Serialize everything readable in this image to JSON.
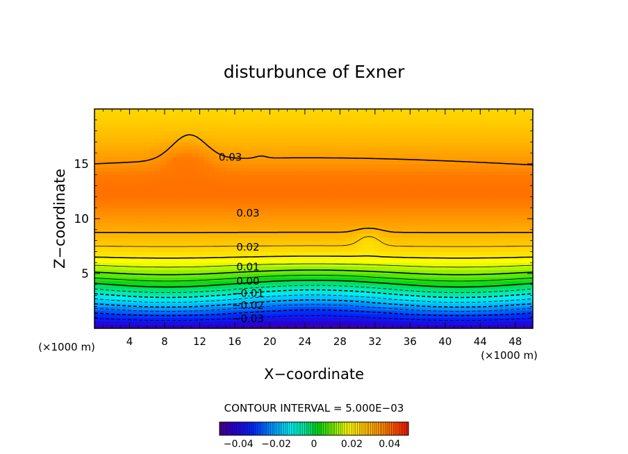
{
  "chart_data": {
    "type": "contour",
    "title": "disturbunce of Exner",
    "xlabel": "X−coordinate",
    "ylabel": "Z−coordinate",
    "x_unit_left": "(×1000 m)",
    "x_unit_right": "(×1000 m)",
    "xlim": [
      0,
      50
    ],
    "ylim": [
      0,
      20
    ],
    "x_ticks": [
      "4",
      "8",
      "12",
      "16",
      "20",
      "24",
      "28",
      "32",
      "36",
      "40",
      "44",
      "48"
    ],
    "y_ticks": [
      "5",
      "10",
      "15"
    ],
    "contour_interval_text": "CONTOUR INTERVAL = 5.000E−03",
    "contour_labels": [
      {
        "text": "0.03",
        "x": 15.5,
        "z": 15.6
      },
      {
        "text": "0.03",
        "x": 17.5,
        "z": 10.5
      },
      {
        "text": "0.02",
        "x": 17.5,
        "z": 7.4
      },
      {
        "text": "0.01",
        "x": 17.5,
        "z": 5.6
      },
      {
        "text": "0.00",
        "x": 17.5,
        "z": 4.3
      },
      {
        "text": "−0.01",
        "x": 17.5,
        "z": 3.2
      },
      {
        "text": "−0.02",
        "x": 17.5,
        "z": 2.1
      },
      {
        "text": "−0.03",
        "x": 17.5,
        "z": 0.9
      }
    ],
    "colorbar": {
      "range": [
        -0.05,
        0.05
      ],
      "tick_labels": [
        "−0.04",
        "−0.02",
        "0",
        "0.02",
        "0.04"
      ],
      "tick_values": [
        -0.04,
        -0.02,
        0,
        0.02,
        0.04
      ]
    },
    "field_profile": {
      "z": [
        0,
        0.5,
        1,
        1.5,
        2,
        2.5,
        3,
        3.5,
        4,
        4.5,
        5,
        5.5,
        6,
        6.5,
        7,
        7.5,
        8,
        9,
        10,
        11,
        12,
        13,
        14,
        15,
        16,
        17,
        18,
        19,
        20
      ],
      "value": [
        -0.047,
        -0.04,
        -0.034,
        -0.029,
        -0.023,
        -0.017,
        -0.012,
        -0.006,
        -0.001,
        0.004,
        0.009,
        0.013,
        0.017,
        0.02,
        0.023,
        0.025,
        0.027,
        0.031,
        0.034,
        0.037,
        0.039,
        0.039,
        0.038,
        0.035,
        0.032,
        0.029,
        0.027,
        0.025,
        0.024
      ]
    }
  }
}
